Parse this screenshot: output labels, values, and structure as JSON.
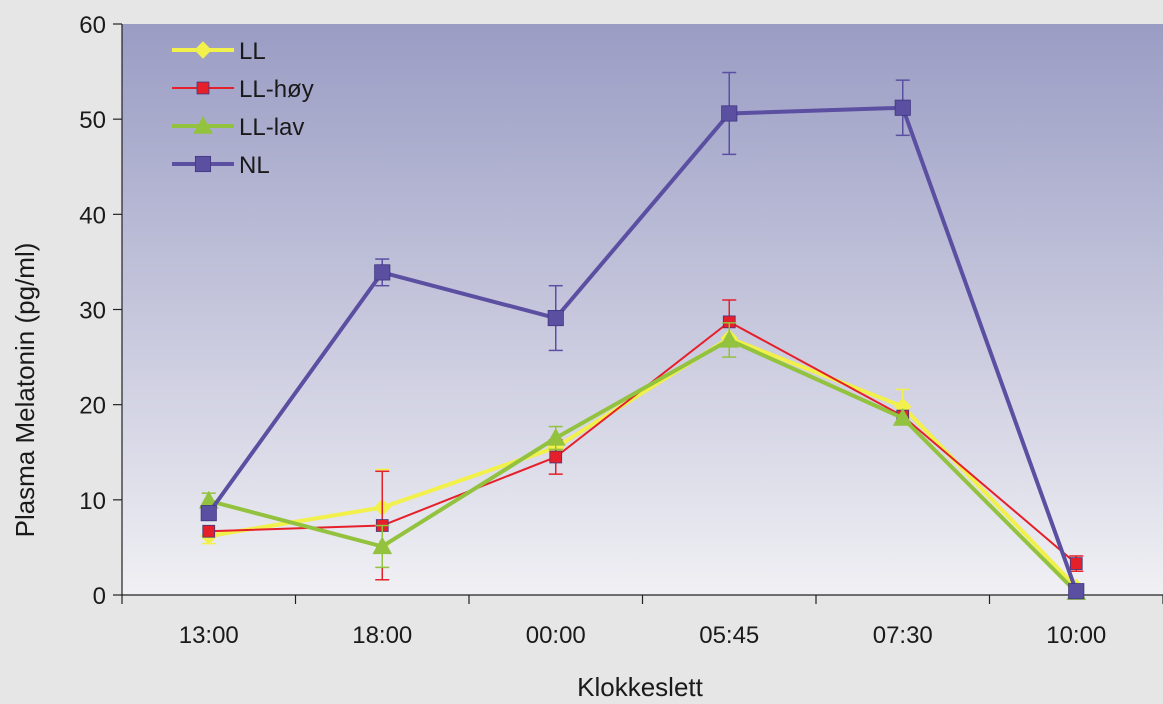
{
  "chart_data": {
    "type": "line",
    "title": "",
    "xlabel": "Klokkeslett",
    "ylabel": "Plasma Melatonin   (pg/ml)",
    "categories": [
      "13:00",
      "18:00",
      "00:00",
      "05:45",
      "07:30",
      "10:00"
    ],
    "ylim": [
      0,
      60
    ],
    "yticks": [
      "0",
      "10",
      "20",
      "30",
      "40",
      "50",
      "60"
    ],
    "legend_position": "top-left",
    "background_gradient": [
      "#9a9cc4",
      "#f0f0f4"
    ],
    "series": [
      {
        "name": "LL",
        "color": "#f2f04a",
        "marker": "diamond",
        "values": [
          6.2,
          9.2,
          15.5,
          27.0,
          19.8,
          0.8
        ],
        "errors": [
          0.8,
          4.0,
          0,
          0,
          1.8,
          0
        ]
      },
      {
        "name": "LL-høy",
        "color": "#e5202a",
        "marker": "square",
        "values": [
          6.7,
          7.3,
          14.5,
          28.7,
          18.8,
          3.3
        ],
        "errors": [
          0,
          5.7,
          1.8,
          2.3,
          0,
          0.8
        ]
      },
      {
        "name": "LL-lav",
        "color": "#92c23e",
        "marker": "triangle",
        "values": [
          9.9,
          5.1,
          16.5,
          26.8,
          18.6,
          0.3
        ],
        "errors": [
          0.8,
          2.2,
          1.2,
          1.8,
          0,
          0
        ]
      },
      {
        "name": "NL",
        "color": "#5b4fa2",
        "marker": "square",
        "values": [
          8.6,
          33.9,
          29.1,
          50.6,
          51.2,
          0.4
        ],
        "errors": [
          0,
          1.4,
          3.4,
          4.3,
          2.9,
          0
        ]
      }
    ]
  }
}
